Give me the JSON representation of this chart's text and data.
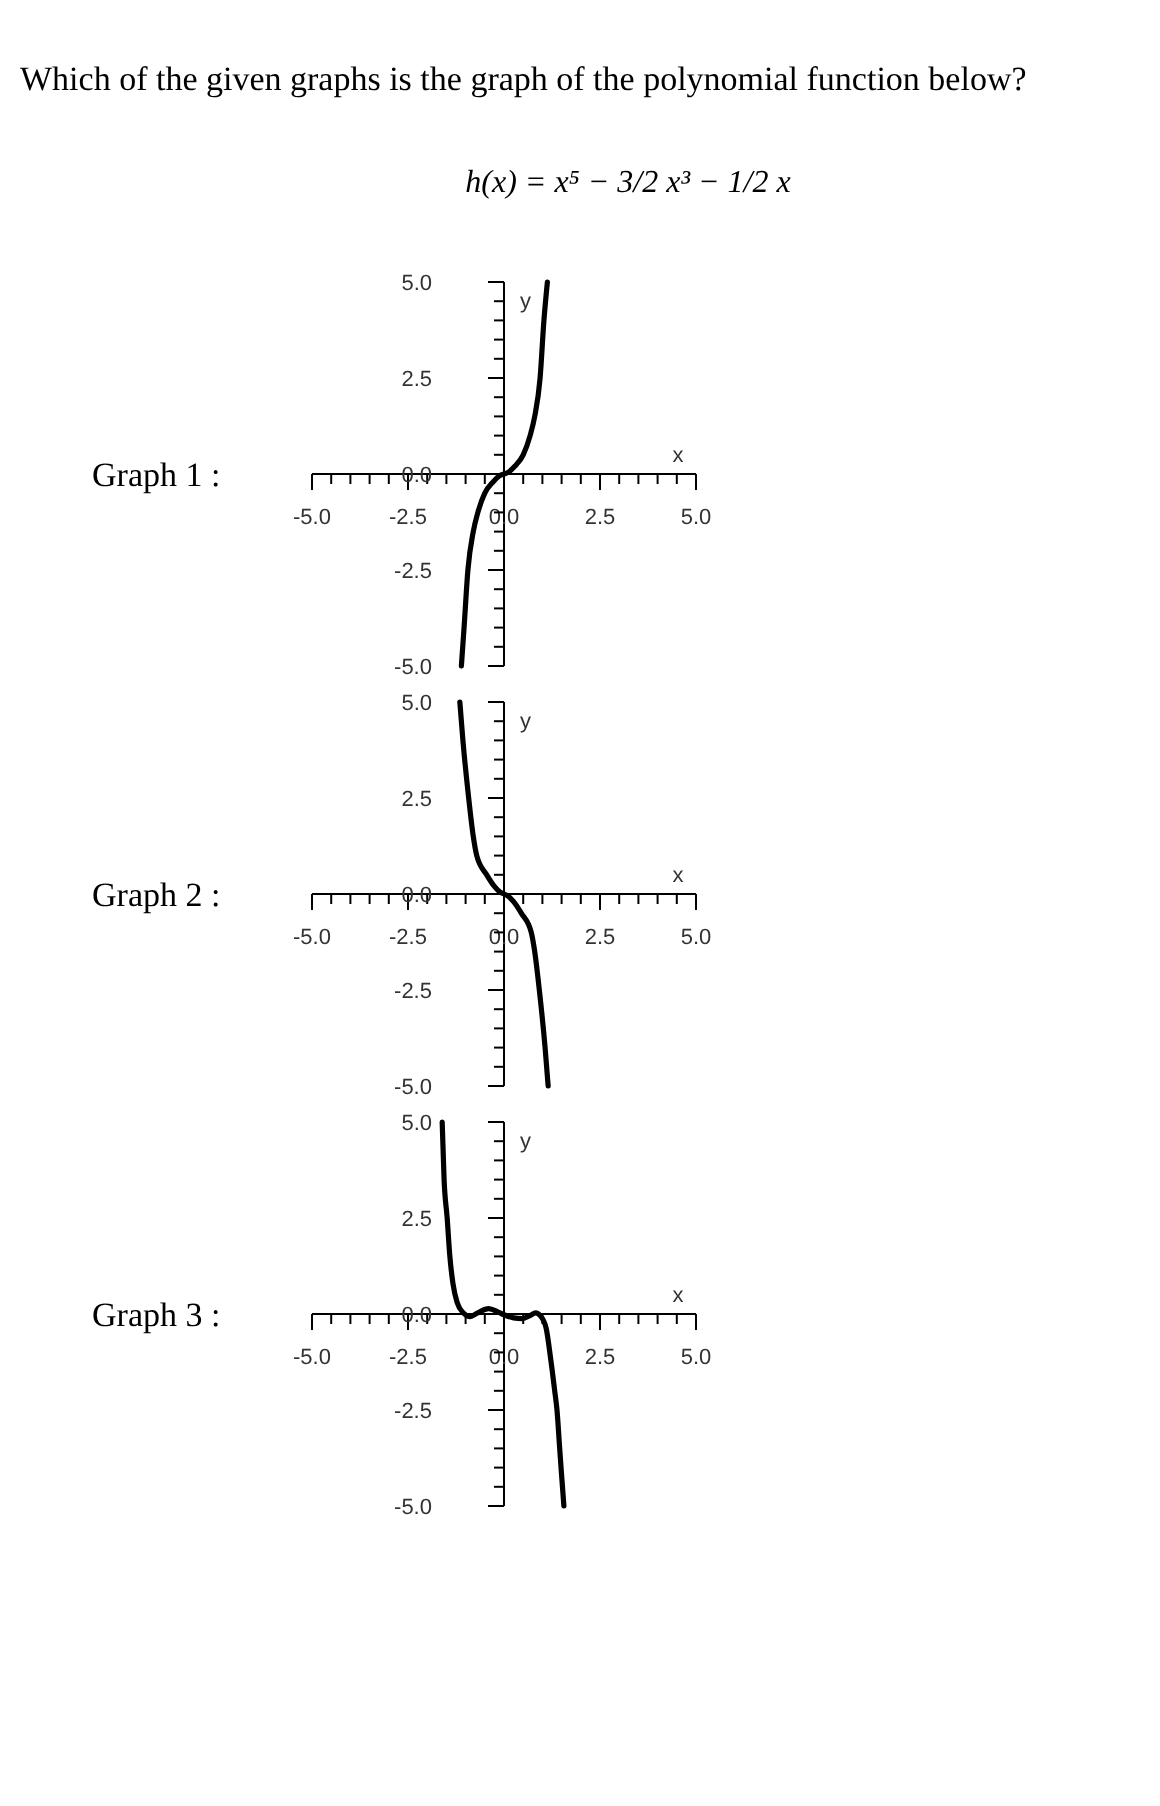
{
  "chart_data": [
    {
      "type": "line",
      "title": "Which of the given graphs is the graph of the polynomial function below?",
      "subtitle": "h(x) = x⁵ − 3/2 x³ − 1/2 x",
      "annotations": [
        "Graph 1 :"
      ],
      "xlabel": "x",
      "ylabel": "y",
      "xlim": [
        -5,
        5
      ],
      "ylim": [
        -5,
        5
      ],
      "xticks": [
        {
          "value": -5,
          "label": "-5.0"
        },
        {
          "value": -4.5,
          "label": null
        },
        {
          "value": -4,
          "label": null
        },
        {
          "value": -3.5,
          "label": null
        },
        {
          "value": -3,
          "label": null
        },
        {
          "value": -2.5,
          "label": "-2.5"
        },
        {
          "value": -2,
          "label": null
        },
        {
          "value": -1.5,
          "label": null
        },
        {
          "value": -1,
          "label": null
        },
        {
          "value": -0.5,
          "label": null
        },
        {
          "value": 0,
          "label": "0.0"
        },
        {
          "value": 0.5,
          "label": null
        },
        {
          "value": 1,
          "label": null
        },
        {
          "value": 1.5,
          "label": null
        },
        {
          "value": 2,
          "label": null
        },
        {
          "value": 2.5,
          "label": "2.5"
        },
        {
          "value": 3,
          "label": null
        },
        {
          "value": 3.5,
          "label": null
        },
        {
          "value": 4,
          "label": null
        },
        {
          "value": 4.5,
          "label": null
        },
        {
          "value": 5,
          "label": "5.0"
        }
      ],
      "yticks": [
        {
          "value": -5,
          "label": "-5.0"
        },
        {
          "value": -4.5,
          "label": null
        },
        {
          "value": -4,
          "label": null
        },
        {
          "value": -3.5,
          "label": null
        },
        {
          "value": -3,
          "label": null
        },
        {
          "value": -2.5,
          "label": "-2.5"
        },
        {
          "value": -2,
          "label": null
        },
        {
          "value": -1.5,
          "label": null
        },
        {
          "value": -1,
          "label": null
        },
        {
          "value": -0.5,
          "label": null
        },
        {
          "value": 0,
          "label": "0.0"
        },
        {
          "value": 0.5,
          "label": null
        },
        {
          "value": 1,
          "label": null
        },
        {
          "value": 1.5,
          "label": null
        },
        {
          "value": 2,
          "label": null
        },
        {
          "value": 2.5,
          "label": "2.5"
        },
        {
          "value": 3,
          "label": null
        },
        {
          "value": 3.5,
          "label": null
        },
        {
          "value": 4,
          "label": null
        },
        {
          "value": 4.5,
          "label": null
        },
        {
          "value": 5,
          "label": "5.0"
        }
      ],
      "series": [
        {
          "color": "#000000",
          "x": [
            -1.11,
            -1.04,
            -0.94,
            -0.8,
            -0.68,
            -0.5,
            -0.28,
            -0.12,
            0,
            0.12,
            0.28,
            0.5,
            0.68,
            0.8,
            0.94,
            1.04,
            1.13
          ],
          "values": [
            -5,
            -4,
            -2.5,
            -1.5,
            -1,
            -0.5,
            -0.2,
            -0.05,
            0,
            0.05,
            0.2,
            0.5,
            1,
            1.5,
            2.5,
            4,
            5
          ]
        }
      ]
    },
    {
      "type": "line",
      "annotations": [
        "Graph 2 :"
      ],
      "xlabel": "x",
      "ylabel": "y",
      "xlim": [
        -5,
        5
      ],
      "ylim": [
        -5,
        5
      ],
      "xticks": [
        {
          "value": -5,
          "label": "-5.0"
        },
        {
          "value": -4.5,
          "label": null
        },
        {
          "value": -4,
          "label": null
        },
        {
          "value": -3.5,
          "label": null
        },
        {
          "value": -3,
          "label": null
        },
        {
          "value": -2.5,
          "label": "-2.5"
        },
        {
          "value": -2,
          "label": null
        },
        {
          "value": -1.5,
          "label": null
        },
        {
          "value": -1,
          "label": null
        },
        {
          "value": -0.5,
          "label": null
        },
        {
          "value": 0,
          "label": "0.0"
        },
        {
          "value": 0.5,
          "label": null
        },
        {
          "value": 1,
          "label": null
        },
        {
          "value": 1.5,
          "label": null
        },
        {
          "value": 2,
          "label": null
        },
        {
          "value": 2.5,
          "label": "2.5"
        },
        {
          "value": 3,
          "label": null
        },
        {
          "value": 3.5,
          "label": null
        },
        {
          "value": 4,
          "label": null
        },
        {
          "value": 4.5,
          "label": null
        },
        {
          "value": 5,
          "label": "5.0"
        }
      ],
      "yticks": [
        {
          "value": -5,
          "label": "-5.0"
        },
        {
          "value": -4.5,
          "label": null
        },
        {
          "value": -4,
          "label": null
        },
        {
          "value": -3.5,
          "label": null
        },
        {
          "value": -3,
          "label": null
        },
        {
          "value": -2.5,
          "label": "-2.5"
        },
        {
          "value": -2,
          "label": null
        },
        {
          "value": -1.5,
          "label": null
        },
        {
          "value": -1,
          "label": null
        },
        {
          "value": -0.5,
          "label": null
        },
        {
          "value": 0,
          "label": "0.0"
        },
        {
          "value": 0.5,
          "label": null
        },
        {
          "value": 1,
          "label": null
        },
        {
          "value": 1.5,
          "label": null
        },
        {
          "value": 2,
          "label": null
        },
        {
          "value": 2.5,
          "label": "2.5"
        },
        {
          "value": 3,
          "label": null
        },
        {
          "value": 3.5,
          "label": null
        },
        {
          "value": 4,
          "label": null
        },
        {
          "value": 4.5,
          "label": null
        },
        {
          "value": 5,
          "label": "5.0"
        }
      ],
      "series": [
        {
          "color": "#000000",
          "x": [
            -1.15,
            -1.07,
            -0.92,
            -0.8,
            -0.71,
            -0.45,
            -0.25,
            -0.1,
            0,
            0.1,
            0.25,
            0.45,
            0.71,
            0.8,
            0.92,
            1.07,
            1.15
          ],
          "values": [
            5,
            4,
            2.5,
            1.5,
            1,
            0.5,
            0.2,
            0.05,
            0,
            -0.05,
            -0.2,
            -0.5,
            -1,
            -1.5,
            -2.5,
            -4,
            -5
          ]
        }
      ]
    },
    {
      "type": "line",
      "annotations": [
        "Graph 3 :"
      ],
      "xlabel": "x",
      "ylabel": "y",
      "xlim": [
        -5,
        5
      ],
      "ylim": [
        -5,
        5
      ],
      "xticks": [
        {
          "value": -5,
          "label": "-5.0"
        },
        {
          "value": -4.5,
          "label": null
        },
        {
          "value": -4,
          "label": null
        },
        {
          "value": -3.5,
          "label": null
        },
        {
          "value": -3,
          "label": null
        },
        {
          "value": -2.5,
          "label": "-2.5"
        },
        {
          "value": -2,
          "label": null
        },
        {
          "value": -1.5,
          "label": null
        },
        {
          "value": -1,
          "label": null
        },
        {
          "value": -0.5,
          "label": null
        },
        {
          "value": 0,
          "label": "0.0"
        },
        {
          "value": 0.5,
          "label": null
        },
        {
          "value": 1,
          "label": null
        },
        {
          "value": 1.5,
          "label": null
        },
        {
          "value": 2,
          "label": null
        },
        {
          "value": 2.5,
          "label": "2.5"
        },
        {
          "value": 3,
          "label": null
        },
        {
          "value": 3.5,
          "label": null
        },
        {
          "value": 4,
          "label": null
        },
        {
          "value": 4.5,
          "label": null
        },
        {
          "value": 5,
          "label": "5.0"
        }
      ],
      "yticks": [
        {
          "value": -5,
          "label": "-5.0"
        },
        {
          "value": -4.5,
          "label": null
        },
        {
          "value": -4,
          "label": null
        },
        {
          "value": -3.5,
          "label": null
        },
        {
          "value": -3,
          "label": null
        },
        {
          "value": -2.5,
          "label": "-2.5"
        },
        {
          "value": -2,
          "label": null
        },
        {
          "value": -1.5,
          "label": null
        },
        {
          "value": -1,
          "label": null
        },
        {
          "value": -0.5,
          "label": null
        },
        {
          "value": 0,
          "label": "0.0"
        },
        {
          "value": 0.5,
          "label": null
        },
        {
          "value": 1,
          "label": null
        },
        {
          "value": 1.5,
          "label": null
        },
        {
          "value": 2,
          "label": null
        },
        {
          "value": 2.5,
          "label": "2.5"
        },
        {
          "value": 3,
          "label": null
        },
        {
          "value": 3.5,
          "label": null
        },
        {
          "value": 4,
          "label": null
        },
        {
          "value": 4.5,
          "label": null
        },
        {
          "value": 5,
          "label": "5.0"
        }
      ],
      "series": [
        {
          "color": "#000000",
          "x": [
            -1.61,
            -1.56,
            -1.48,
            -1.41,
            -1.33,
            -1.22,
            -1.05,
            -0.88,
            -0.7,
            -0.4,
            -0.15,
            0,
            0.25,
            0.47,
            0.7,
            0.82,
            0.95,
            1.1,
            1.18,
            1.25,
            1.32,
            1.38,
            1.45,
            1.5,
            1.56
          ],
          "values": [
            5,
            3.5,
            2.5,
            1.5,
            0.8,
            0.3,
            0.02,
            -0.07,
            0.02,
            0.14,
            0.05,
            -0.02,
            -0.1,
            -0.12,
            -0.03,
            0.03,
            -0.05,
            -0.38,
            -0.9,
            -1.43,
            -2,
            -2.5,
            -3.5,
            -4.2,
            -5
          ]
        }
      ]
    }
  ]
}
